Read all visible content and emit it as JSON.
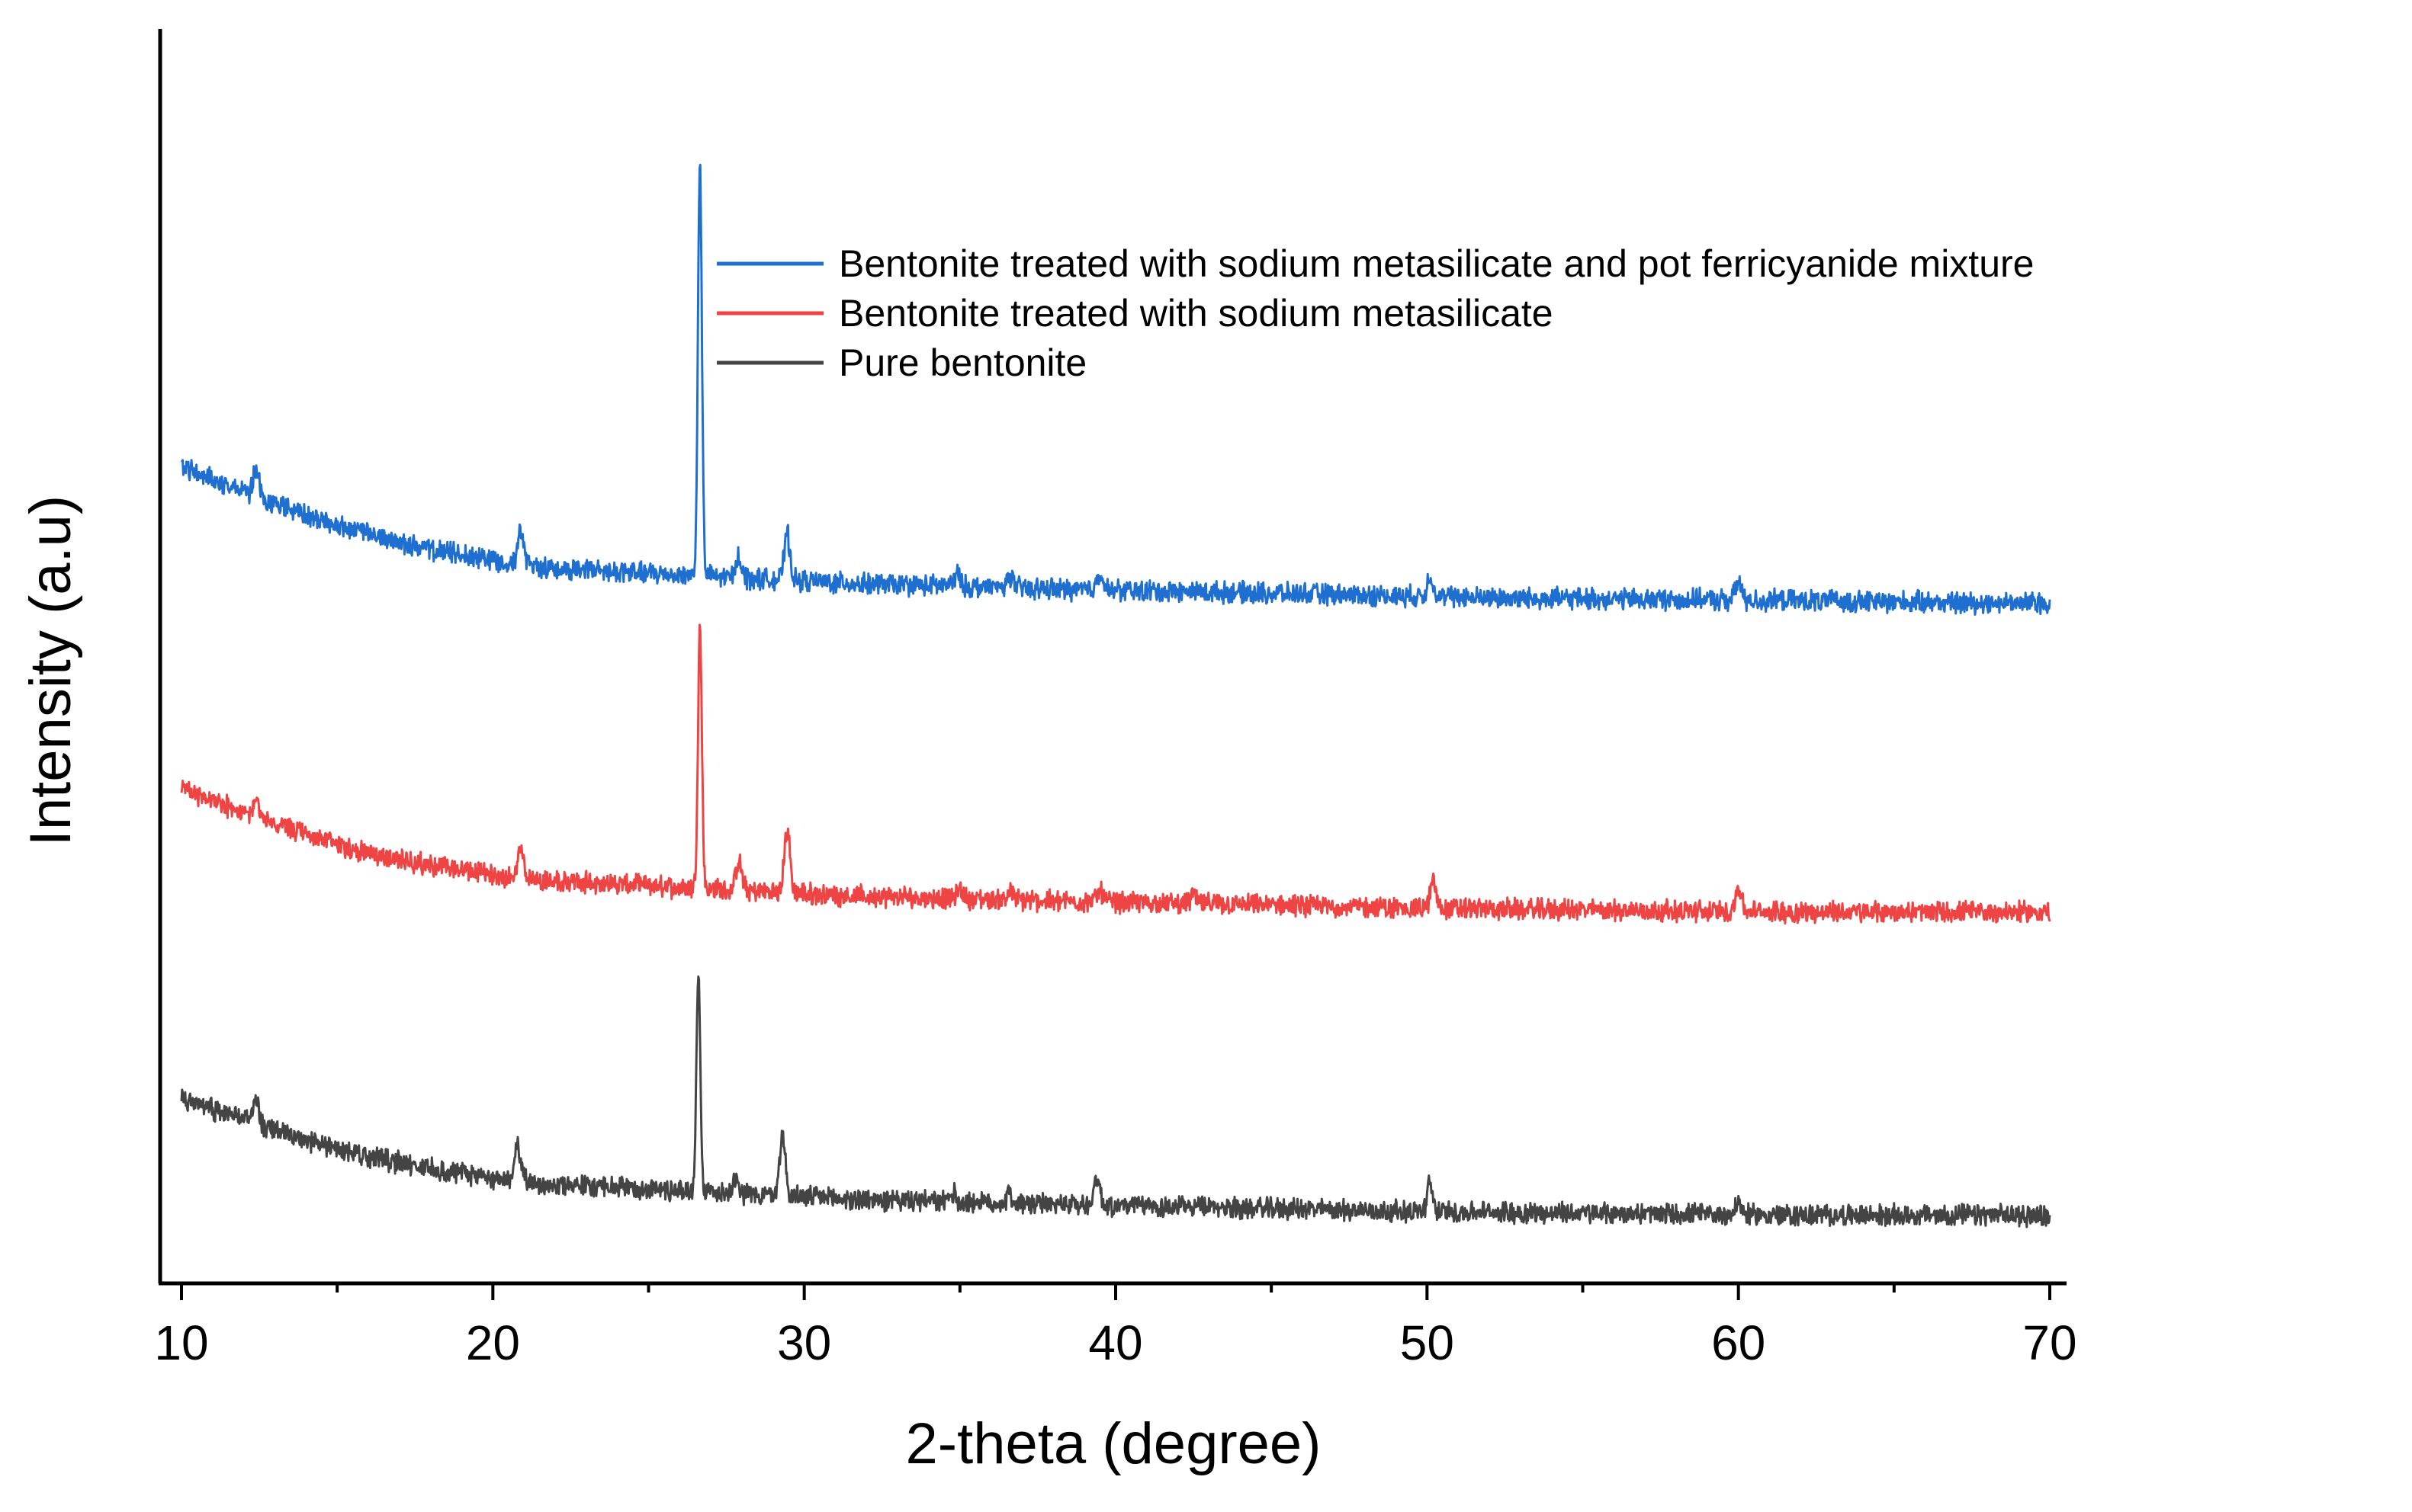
{
  "chart_data": {
    "type": "line",
    "title": "",
    "xlabel": "2-theta (degree)",
    "ylabel": "Intensity (a.u)",
    "xlim": [
      10,
      70
    ],
    "ylim": [
      0,
      20
    ],
    "x_ticks": [
      10,
      20,
      30,
      40,
      50,
      60,
      70
    ],
    "x_tick_labels": [
      "10",
      "20",
      "30",
      "40",
      "50",
      "60",
      "70"
    ],
    "grid": false,
    "legend_position": "top-right",
    "series": [
      {
        "name": "Bentonite treated with sodium metasilicate and pot ferricyanide mixture",
        "color": "#1f6fd1",
        "x": [
          10,
          12,
          14,
          16,
          18,
          20,
          22,
          24,
          26,
          28,
          30,
          32,
          34,
          36,
          38,
          40,
          42,
          44,
          46,
          48,
          50,
          52,
          54,
          56,
          58,
          60,
          62,
          64,
          66,
          68,
          70
        ],
        "baseline": [
          13.2,
          12.8,
          12.4,
          12.1,
          11.85,
          11.7,
          11.55,
          11.5,
          11.45,
          11.4,
          11.35,
          11.3,
          11.28,
          11.25,
          11.22,
          11.2,
          11.18,
          11.16,
          11.14,
          11.12,
          11.1,
          11.08,
          11.07,
          11.06,
          11.05,
          11.04,
          11.03,
          11.02,
          11.01,
          11.0,
          11.0
        ],
        "peaks": [
          {
            "x": 12.4,
            "height": 0.4
          },
          {
            "x": 20.9,
            "height": 0.5
          },
          {
            "x": 26.65,
            "height": 6.6
          },
          {
            "x": 27.9,
            "height": 0.35
          },
          {
            "x": 29.45,
            "height": 0.75
          },
          {
            "x": 34.9,
            "height": 0.2
          },
          {
            "x": 36.6,
            "height": 0.2
          },
          {
            "x": 39.5,
            "height": 0.3
          },
          {
            "x": 50.1,
            "height": 0.35
          },
          {
            "x": 60.0,
            "height": 0.3
          }
        ]
      },
      {
        "name": "Bentonite treated with sodium metasilicate",
        "color": "#ef4444",
        "x": [
          10,
          12,
          14,
          16,
          18,
          20,
          22,
          24,
          26,
          28,
          30,
          32,
          34,
          36,
          38,
          40,
          42,
          44,
          46,
          48,
          50,
          52,
          54,
          56,
          58,
          60,
          62,
          64,
          66,
          68,
          70
        ],
        "baseline": [
          8.0,
          7.6,
          7.25,
          6.95,
          6.75,
          6.6,
          6.5,
          6.45,
          6.4,
          6.35,
          6.3,
          6.25,
          6.23,
          6.2,
          6.18,
          6.16,
          6.14,
          6.12,
          6.1,
          6.08,
          6.06,
          6.05,
          6.04,
          6.03,
          6.02,
          6.01,
          6.0,
          6.0,
          6.0,
          6.0,
          6.0
        ],
        "peaks": [
          {
            "x": 12.4,
            "height": 0.3
          },
          {
            "x": 20.9,
            "height": 0.5
          },
          {
            "x": 26.65,
            "height": 4.2
          },
          {
            "x": 27.9,
            "height": 0.45
          },
          {
            "x": 29.45,
            "height": 1.0
          },
          {
            "x": 35.0,
            "height": 0.15
          },
          {
            "x": 36.6,
            "height": 0.15
          },
          {
            "x": 39.5,
            "height": 0.2
          },
          {
            "x": 42.5,
            "height": 0.15
          },
          {
            "x": 50.2,
            "height": 0.45
          },
          {
            "x": 60.0,
            "height": 0.4
          }
        ]
      },
      {
        "name": "Pure bentonite",
        "color": "#444444",
        "x": [
          10,
          12,
          14,
          16,
          18,
          20,
          22,
          24,
          26,
          28,
          30,
          32,
          34,
          36,
          38,
          40,
          42,
          44,
          46,
          48,
          50,
          52,
          54,
          56,
          58,
          60,
          62,
          64,
          66,
          68,
          70
        ],
        "baseline": [
          3.0,
          2.65,
          2.3,
          2.05,
          1.85,
          1.7,
          1.6,
          1.55,
          1.5,
          1.45,
          1.4,
          1.35,
          1.32,
          1.3,
          1.28,
          1.26,
          1.24,
          1.22,
          1.2,
          1.18,
          1.16,
          1.15,
          1.14,
          1.13,
          1.12,
          1.11,
          1.1,
          1.1,
          1.1,
          1.1,
          1.1
        ],
        "peaks": [
          {
            "x": 12.4,
            "height": 0.4
          },
          {
            "x": 20.8,
            "height": 0.55
          },
          {
            "x": 26.6,
            "height": 3.5
          },
          {
            "x": 27.8,
            "height": 0.3
          },
          {
            "x": 29.3,
            "height": 1.0
          },
          {
            "x": 34.8,
            "height": 0.15
          },
          {
            "x": 36.6,
            "height": 0.15
          },
          {
            "x": 39.4,
            "height": 0.45
          },
          {
            "x": 50.1,
            "height": 0.45
          },
          {
            "x": 60.0,
            "height": 0.2
          }
        ]
      }
    ]
  }
}
